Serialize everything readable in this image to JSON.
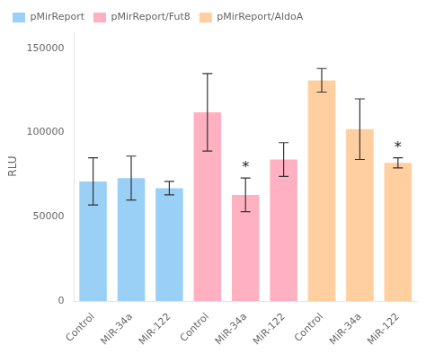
{
  "chart_data": {
    "type": "bar",
    "categories": [
      "Control",
      "MiR-34a",
      "MiR-122",
      "Control",
      "MiR-34a",
      "MiR-122",
      "Control",
      "MiR-34a",
      "MiR-122"
    ],
    "series": [
      {
        "name": "pMirReport",
        "values": [
          71000,
          73000,
          67000,
          null,
          null,
          null,
          null,
          null,
          null
        ],
        "errors": [
          14000,
          13000,
          4000,
          null,
          null,
          null,
          null,
          null,
          null
        ]
      },
      {
        "name": "pMirReport/Fut8",
        "values": [
          null,
          null,
          null,
          112000,
          63000,
          84000,
          null,
          null,
          null
        ],
        "errors": [
          null,
          null,
          null,
          23000,
          10000,
          10000,
          null,
          null,
          null
        ]
      },
      {
        "name": "pMirReport/AldoA",
        "values": [
          null,
          null,
          null,
          null,
          null,
          null,
          131000,
          102000,
          82000
        ],
        "errors": [
          null,
          null,
          null,
          null,
          null,
          null,
          7000,
          18000,
          3000
        ]
      }
    ],
    "annotations": [
      {
        "text": "*",
        "series": "pMirReport/Fut8",
        "index": 4
      },
      {
        "text": "*",
        "series": "pMirReport/AldoA",
        "index": 8
      }
    ],
    "ylabel": "RLU",
    "ylim": [
      0,
      160000
    ],
    "yticks": [
      0,
      50000,
      100000,
      150000
    ],
    "grid": false,
    "legend": "upper left"
  }
}
